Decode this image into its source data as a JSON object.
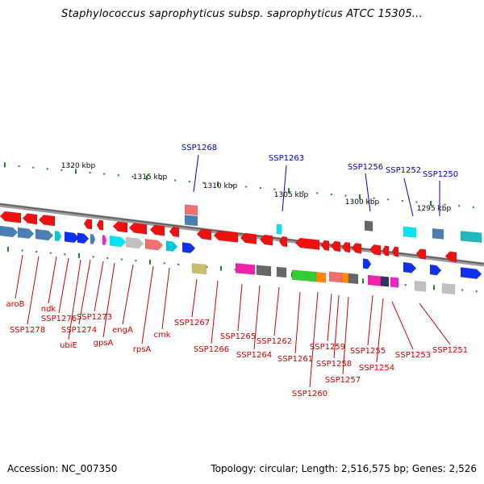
{
  "title": "Staphylococcus saprophyticus subsp. saprophyticus ATCC 15305...",
  "accession": "Accession: NC_007350",
  "topology": "Topology: circular; Length: 2,516,575 bp; Genes: 2,526",
  "colors": {
    "backbone": "#888888",
    "tick": "#1a8a1a",
    "label_red": "#cc0000",
    "label_blue": "#0000cc",
    "kbp": "#000000"
  },
  "kbp_labels": [
    "1320 kbp",
    "1315 kbp",
    "1310 kbp",
    "1305 kbp",
    "1300 kbp",
    "1295 kbp"
  ],
  "blue_labels": [
    "SSP1268",
    "SSP1263",
    "SSP1256",
    "SSP1252",
    "SSP1250"
  ],
  "red_labels": [
    "aroB",
    "SSP1278",
    "ndk",
    "SSP1276",
    "ubiE",
    "SSP1274",
    "SSP1273",
    "gpsA",
    "engA",
    "rpsA",
    "cmk",
    "SSP1267",
    "SSP1266",
    "SSP1265",
    "SSP1264",
    "SSP1262",
    "SSP1261",
    "SSP1260",
    "SSP1259",
    "SSP1258",
    "SSP1257",
    "SSP1255",
    "SSP1254",
    "SSP1253",
    "SSP1251"
  ]
}
